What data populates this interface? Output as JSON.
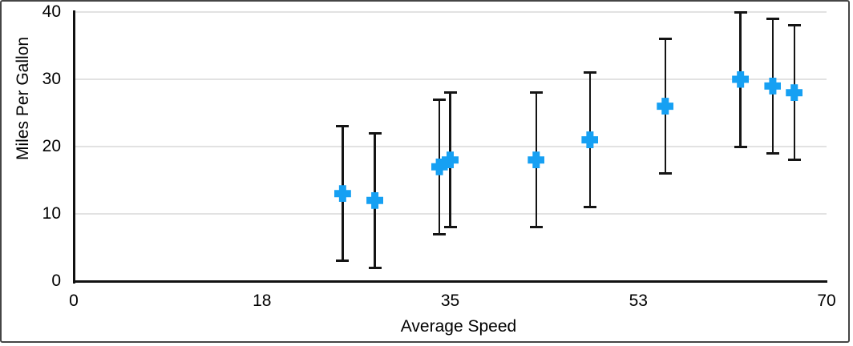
{
  "chart_data": {
    "type": "scatter",
    "title": "",
    "xlabel": "Average Speed",
    "ylabel": "Miles Per Gallon",
    "xlim": [
      0,
      70
    ],
    "ylim": [
      0,
      40
    ],
    "x_ticks": [
      {
        "pos": 0,
        "label": "0"
      },
      {
        "pos": 17.5,
        "label": "18"
      },
      {
        "pos": 35,
        "label": "35"
      },
      {
        "pos": 52.5,
        "label": "53"
      },
      {
        "pos": 70,
        "label": "70"
      }
    ],
    "y_ticks": [
      {
        "pos": 0,
        "label": "0"
      },
      {
        "pos": 10,
        "label": "10"
      },
      {
        "pos": 20,
        "label": "20"
      },
      {
        "pos": 30,
        "label": "30"
      },
      {
        "pos": 40,
        "label": "40"
      }
    ],
    "grid": "horizontal-only",
    "legend": "none",
    "marker": "plus",
    "marker_color": "#16A0F3",
    "error_bar_color": "#141414",
    "error_bars": {
      "plus": 10,
      "minus": 10
    },
    "points": [
      {
        "x": 25,
        "y": 13
      },
      {
        "x": 28,
        "y": 12
      },
      {
        "x": 34,
        "y": 17
      },
      {
        "x": 35,
        "y": 18
      },
      {
        "x": 43,
        "y": 18
      },
      {
        "x": 48,
        "y": 21
      },
      {
        "x": 55,
        "y": 26
      },
      {
        "x": 62,
        "y": 30
      },
      {
        "x": 65,
        "y": 29
      },
      {
        "x": 67,
        "y": 28
      }
    ]
  }
}
